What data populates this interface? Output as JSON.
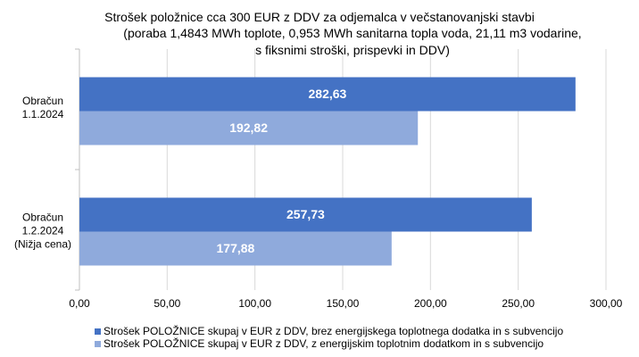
{
  "chart_data": {
    "type": "hbar",
    "title": "Strošek položnice cca 300 EUR z DDV za odjemalca v večstanovanjski stavbi",
    "subtitle": "(poraba 1,4843 MWh toplote, 0,953 MWh sanitarna topla voda, 21,11 m3 vodarine,\ns fiksnimi stroški, prispevki in DDV)",
    "categories": [
      "Obračun\n1.1.2024",
      "Obračun\n1.2.2024\n(Nižja cena)"
    ],
    "series": [
      {
        "name": "Strošek POLOŽNICE skupaj v EUR z DDV, brez energijskega toplotnega dodatka in s subvencijo",
        "color": "#4472c4",
        "values": [
          282.63,
          257.73
        ],
        "value_labels": [
          "282,63",
          "257,73"
        ]
      },
      {
        "name": "Strošek POLOŽNICE skupaj v EUR z DDV, z energijskim toplotnim dodatkom in s subvencijo",
        "color": "#8faadc",
        "values": [
          192.82,
          177.88
        ],
        "value_labels": [
          "192,82",
          "177,88"
        ]
      }
    ],
    "xlim": [
      0,
      300
    ],
    "xticks": [
      {
        "value": 0,
        "label": "0,00"
      },
      {
        "value": 50,
        "label": "50,00"
      },
      {
        "value": 100,
        "label": "100,00"
      },
      {
        "value": 150,
        "label": "150,00"
      },
      {
        "value": 200,
        "label": "200,00"
      },
      {
        "value": 250,
        "label": "250,00"
      },
      {
        "value": 300,
        "label": "300,00"
      }
    ],
    "grid": true,
    "legend": "bottom"
  }
}
